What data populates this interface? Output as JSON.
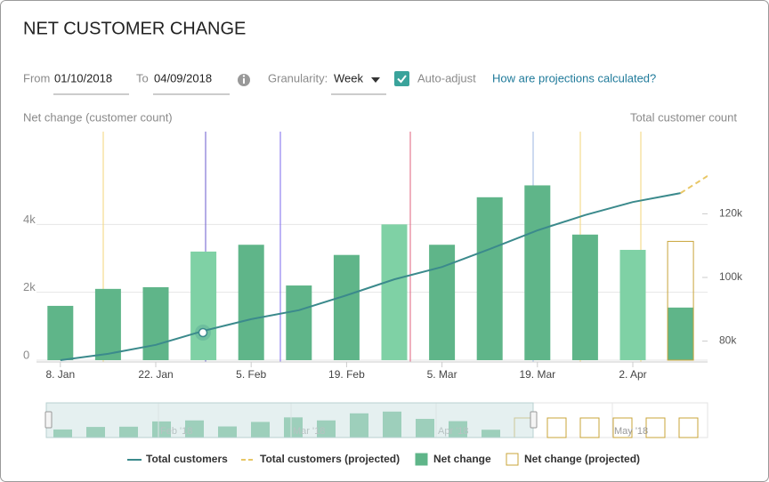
{
  "header": {
    "title": "NET CUSTOMER CHANGE"
  },
  "controls": {
    "from_label": "From",
    "from_value": "01/10/2018",
    "to_label": "To",
    "to_value": "04/09/2018",
    "granularity_label": "Granularity:",
    "granularity_value": "Week",
    "auto_adjust": "Auto-adjust",
    "help_link": "How are projections calculated?"
  },
  "navigator": {
    "labels": [
      "Feb '18",
      "Mar '18",
      "Apr '18",
      "May '18"
    ]
  },
  "chart_data": {
    "type": "bar",
    "y_label": "Net change (customer count)",
    "y2_label": "Total customer count",
    "categories": [
      "8. Jan",
      null,
      "22. Jan",
      null,
      "5. Feb",
      null,
      "19. Feb",
      null,
      "5. Mar",
      null,
      "19. Mar",
      null,
      "2. Apr",
      null,
      null
    ],
    "ylim": [
      0,
      6000
    ],
    "yticks": [
      0,
      {
        "value": 2000,
        "label": "2k"
      },
      {
        "value": 4000,
        "label": "4k"
      }
    ],
    "y2lim": [
      74000,
      138000
    ],
    "y2ticks": [
      {
        "value": 80000,
        "label": "80k"
      },
      {
        "value": 100000,
        "label": "100k"
      },
      {
        "value": 120000,
        "label": "120k"
      }
    ],
    "grid": true,
    "series": [
      {
        "name": "Total customers",
        "type": "line",
        "axis": "y2",
        "color": "#3b8a8c",
        "values": [
          74000,
          76000,
          78800,
          83200,
          86900,
          89700,
          94400,
          99400,
          103300,
          108900,
          114800,
          119600,
          123700,
          126500,
          null
        ]
      },
      {
        "name": "Total customers (projected)",
        "type": "line",
        "dashed": true,
        "axis": "y2",
        "color": "#e8c766",
        "values": [
          null,
          null,
          null,
          null,
          null,
          null,
          null,
          null,
          null,
          null,
          null,
          null,
          null,
          126500,
          136000
        ]
      },
      {
        "name": "Net change",
        "type": "bar",
        "color": "#5fb589",
        "colors": [
          "#5fb589",
          "#5fb589",
          "#5fb589",
          "#7fd1a5",
          "#5fb589",
          "#5fb589",
          "#5fb589",
          "#7fd1a5",
          "#5fb589",
          "#5fb589",
          "#5fb589",
          "#5fb589",
          "#7fd1a5",
          "#5fb589",
          "#5fb589"
        ],
        "values": [
          1600,
          2100,
          2150,
          3200,
          3400,
          2200,
          3100,
          4000,
          3400,
          4800,
          5150,
          3700,
          3250,
          1550,
          null
        ]
      },
      {
        "name": "Net change (projected)",
        "type": "bar",
        "outline": true,
        "color": "#c9a43a",
        "values": [
          null,
          null,
          null,
          null,
          null,
          null,
          null,
          null,
          null,
          null,
          null,
          null,
          null,
          3500,
          null
        ]
      }
    ]
  }
}
